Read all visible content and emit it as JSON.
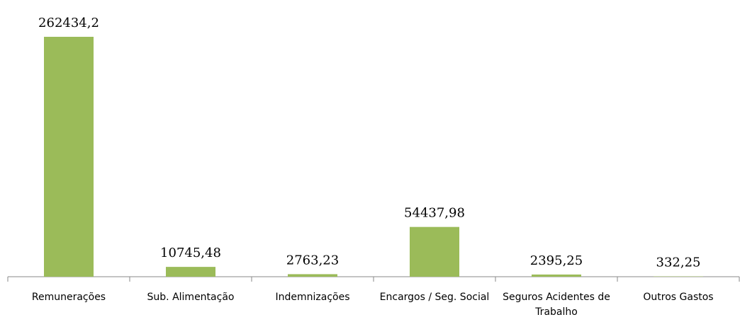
{
  "chart_data": {
    "type": "bar",
    "categories": [
      "Remunerações",
      "Sub. Alimentação",
      "Indemnizações",
      "Encargos / Seg. Social",
      "Seguros Acidentes de Trabalho",
      "Outros Gastos"
    ],
    "values": [
      262434.2,
      10745.48,
      2763.23,
      54437.98,
      2395.25,
      332.25
    ],
    "value_labels": [
      "262434,2",
      "10745,48",
      "2763,23",
      "54437,98",
      "2395,25",
      "332,25"
    ],
    "color": "#9bbb59"
  }
}
